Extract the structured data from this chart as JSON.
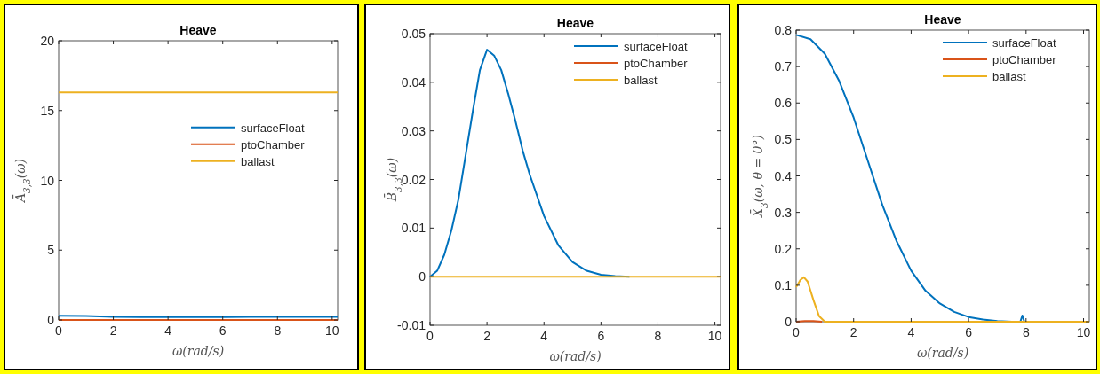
{
  "chart_data": [
    {
      "type": "line",
      "title": "Heave",
      "xlabel": "ω(rad/s)",
      "ylabel": "Ā$_{3,3}$(ω)",
      "xlim": [
        0,
        10.2
      ],
      "xticks": [
        0,
        2,
        4,
        6,
        8,
        10
      ],
      "ylim": [
        0,
        20
      ],
      "yticks": [
        0,
        5,
        10,
        15,
        20
      ],
      "grid": false,
      "legend": "right",
      "x": [
        0,
        1,
        2,
        3,
        4,
        5,
        6,
        7,
        8,
        9,
        10.2
      ],
      "series": [
        {
          "name": "surfaceFloat",
          "color": "#0072bd",
          "values": [
            0.3,
            0.28,
            0.23,
            0.2,
            0.2,
            0.21,
            0.21,
            0.22,
            0.22,
            0.22,
            0.22
          ]
        },
        {
          "name": "ptoChamber",
          "color": "#d95319",
          "values": [
            0,
            0,
            0,
            0,
            0,
            0,
            0,
            0,
            0,
            0,
            0
          ]
        },
        {
          "name": "ballast",
          "color": "#edb120",
          "values": [
            16.3,
            16.3,
            16.3,
            16.3,
            16.3,
            16.3,
            16.3,
            16.3,
            16.3,
            16.3,
            16.3
          ]
        }
      ]
    },
    {
      "type": "line",
      "title": "Heave",
      "xlabel": "ω(rad/s)",
      "ylabel": "B̄$_{3,3}$(ω)",
      "xlim": [
        0,
        10.2
      ],
      "xticks": [
        0,
        2,
        4,
        6,
        8,
        10
      ],
      "ylim": [
        -0.01,
        0.05
      ],
      "yticks": [
        -0.01,
        0,
        0.01,
        0.02,
        0.03,
        0.04,
        0.05
      ],
      "grid": false,
      "legend": "top right",
      "x": [
        0,
        0.25,
        0.5,
        0.75,
        1,
        1.25,
        1.5,
        1.75,
        2,
        2.25,
        2.5,
        2.75,
        3,
        3.25,
        3.5,
        4,
        4.5,
        5,
        5.5,
        6,
        6.5,
        7,
        8,
        9,
        10.2
      ],
      "series": [
        {
          "name": "surfaceFloat",
          "color": "#0072bd",
          "values": [
            0,
            0.0012,
            0.0045,
            0.0095,
            0.016,
            0.025,
            0.034,
            0.0425,
            0.0467,
            0.0455,
            0.0425,
            0.0375,
            0.032,
            0.026,
            0.021,
            0.0125,
            0.0065,
            0.003,
            0.0012,
            0.0004,
            0.0001,
            0,
            null,
            null,
            null
          ]
        },
        {
          "name": "ptoChamber",
          "color": "#d95319",
          "values": [
            null,
            null,
            null,
            null,
            null,
            null,
            null,
            null,
            null,
            null,
            null,
            null,
            null,
            null,
            null,
            null,
            null,
            null,
            null,
            null,
            null,
            null,
            null,
            null,
            null
          ]
        },
        {
          "name": "ballast",
          "color": "#edb120",
          "values": [
            0,
            0,
            0,
            0,
            0,
            0,
            0,
            0,
            0,
            0,
            0,
            0,
            0,
            0,
            0,
            0,
            0,
            0,
            0,
            0,
            0,
            0,
            0,
            0,
            0
          ]
        }
      ]
    },
    {
      "type": "line",
      "title": "Heave",
      "xlabel": "ω(rad/s)",
      "ylabel": "X̄$_{3}$(ω, θ = 0°)",
      "xlim": [
        0,
        10.2
      ],
      "xticks": [
        0,
        2,
        4,
        6,
        8,
        10
      ],
      "ylim": [
        0,
        0.8
      ],
      "yticks": [
        0,
        0.1,
        0.2,
        0.3,
        0.4,
        0.5,
        0.6,
        0.7,
        0.8
      ],
      "grid": false,
      "legend": "top right",
      "series": [
        {
          "name": "surfaceFloat",
          "color": "#0072bd",
          "x": [
            0,
            0.5,
            1,
            1.5,
            2,
            2.5,
            3,
            3.5,
            4,
            4.5,
            5,
            5.5,
            6,
            6.5,
            7,
            7.5,
            7.8,
            7.87,
            7.94
          ],
          "values": [
            0.787,
            0.775,
            0.735,
            0.66,
            0.56,
            0.44,
            0.32,
            0.22,
            0.14,
            0.085,
            0.05,
            0.027,
            0.013,
            0.006,
            0.002,
            0,
            0,
            0.017,
            0
          ]
        },
        {
          "name": "ptoChamber",
          "color": "#d95319",
          "x": [
            0,
            0.3,
            0.6,
            0.9
          ],
          "values": [
            0,
            0.002,
            0.002,
            0
          ]
        },
        {
          "name": "ballast",
          "color": "#edb120",
          "x": [
            0,
            0.15,
            0.27,
            0.4,
            0.6,
            0.8,
            1,
            2,
            4,
            6,
            8,
            10.2
          ],
          "values": [
            0.095,
            0.115,
            0.122,
            0.11,
            0.06,
            0.015,
            0,
            0,
            0,
            0,
            0,
            0
          ]
        }
      ]
    }
  ]
}
